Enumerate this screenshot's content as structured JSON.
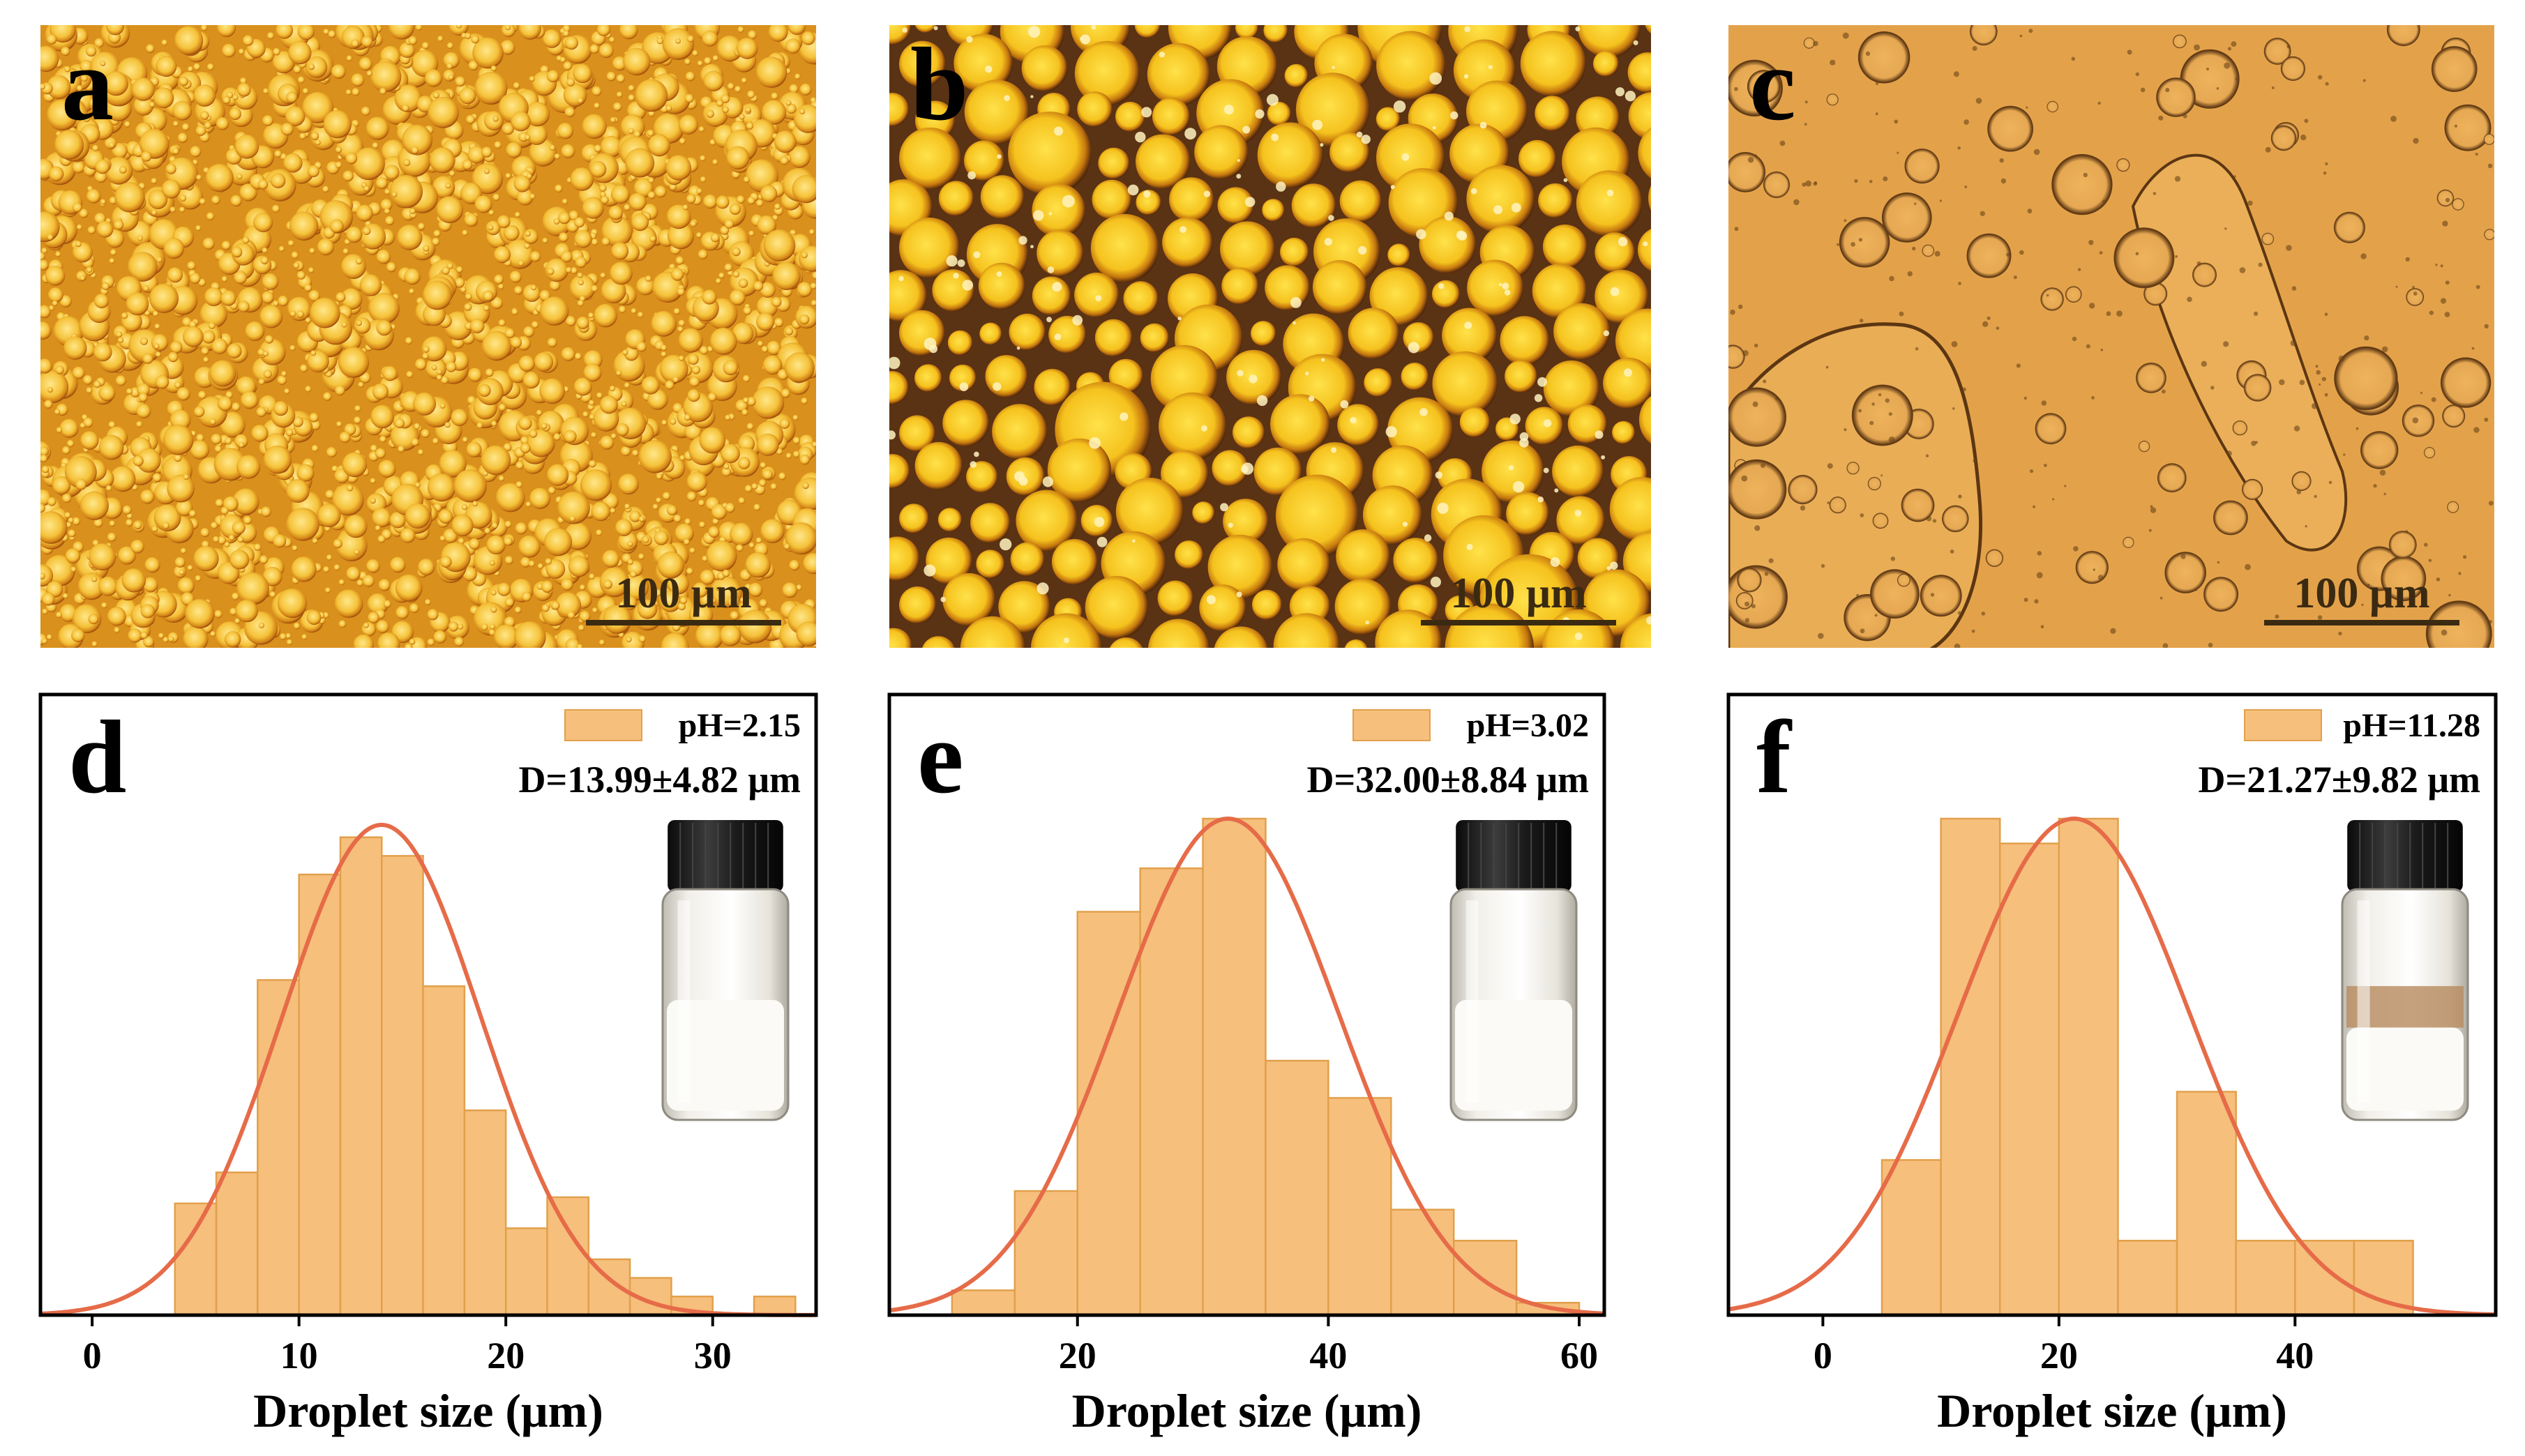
{
  "figure": {
    "micrographs": [
      {
        "panel_label": "a",
        "scale_bar": "100 μm",
        "style": "dense-small"
      },
      {
        "panel_label": "b",
        "scale_bar": "100 μm",
        "style": "large-dark"
      },
      {
        "panel_label": "c",
        "scale_bar": "100 μm",
        "style": "sparse"
      }
    ]
  },
  "colors": {
    "bar_fill": "#f6bf7c",
    "bar_edge": "#e2a04c",
    "curve": "#e66b48",
    "micro_a_bg": "#d9901c",
    "micro_b_bg": "#5a3214",
    "micro_c_bg": "#e3a24a"
  },
  "chart_data": [
    {
      "type": "bar",
      "panel_label": "d",
      "legend": "pH=2.15",
      "annotation": "D=13.99±4.82 μm",
      "xlabel": "Droplet size (μm)",
      "ylabel": "",
      "xlim": [
        -2.5,
        35
      ],
      "ylim": [
        0,
        100
      ],
      "xticks": [
        0,
        10,
        20,
        30
      ],
      "bin_width": 2,
      "bin_starts": [
        4,
        6,
        8,
        10,
        12,
        14,
        16,
        18,
        20,
        22,
        24,
        26,
        28,
        32
      ],
      "values": [
        18,
        23,
        54,
        71,
        77,
        74,
        53,
        33,
        14,
        19,
        9,
        6,
        3,
        3
      ],
      "fit": {
        "type": "normal",
        "mean": 13.99,
        "sd": 4.82,
        "peak": 79
      }
    },
    {
      "type": "bar",
      "panel_label": "e",
      "legend": "pH=3.02",
      "annotation": "D=32.00±8.84 μm",
      "xlabel": "Droplet size (μm)",
      "ylabel": "",
      "xlim": [
        5,
        62
      ],
      "ylim": [
        0,
        100
      ],
      "xticks": [
        20,
        40,
        60
      ],
      "bin_width": 5,
      "bin_starts": [
        10,
        15,
        20,
        25,
        30,
        35,
        40,
        45,
        50,
        55
      ],
      "values": [
        4,
        20,
        65,
        72,
        80,
        41,
        35,
        17,
        12,
        2
      ],
      "fit": {
        "type": "normal",
        "mean": 32.0,
        "sd": 8.84,
        "peak": 80
      }
    },
    {
      "type": "bar",
      "panel_label": "f",
      "legend": "pH=11.28",
      "annotation": "D=21.27±9.82 μm",
      "xlabel": "Droplet size (μm)",
      "ylabel": "",
      "xlim": [
        -8,
        57
      ],
      "ylim": [
        0,
        100
      ],
      "xticks": [
        0,
        20,
        40
      ],
      "bin_width": 5,
      "bin_starts": [
        5,
        10,
        15,
        20,
        25,
        30,
        35,
        40,
        45
      ],
      "values": [
        25,
        80,
        76,
        80,
        12,
        36,
        12,
        12,
        12
      ],
      "fit": {
        "type": "normal",
        "mean": 21.27,
        "sd": 9.82,
        "peak": 80
      }
    }
  ]
}
